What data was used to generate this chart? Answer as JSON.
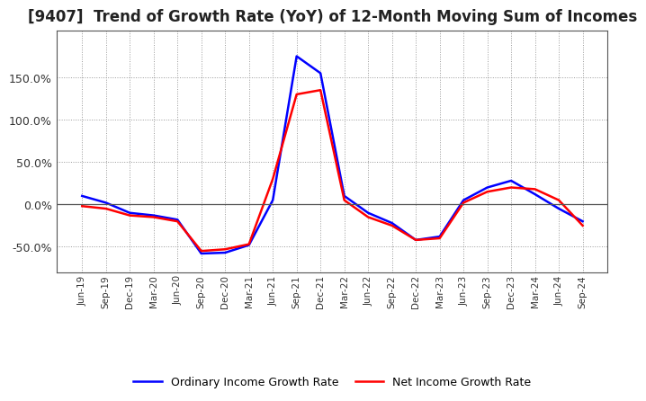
{
  "title": "[9407]  Trend of Growth Rate (YoY) of 12-Month Moving Sum of Incomes",
  "title_fontsize": 12,
  "background_color": "#ffffff",
  "plot_bg_color": "#ffffff",
  "grid_color": "#999999",
  "legend_labels": [
    "Ordinary Income Growth Rate",
    "Net Income Growth Rate"
  ],
  "legend_colors": [
    "blue",
    "red"
  ],
  "x_labels": [
    "Jun-19",
    "Sep-19",
    "Dec-19",
    "Mar-20",
    "Jun-20",
    "Sep-20",
    "Dec-20",
    "Mar-21",
    "Jun-21",
    "Sep-21",
    "Dec-21",
    "Mar-22",
    "Jun-22",
    "Sep-22",
    "Dec-22",
    "Mar-23",
    "Jun-23",
    "Sep-23",
    "Dec-23",
    "Mar-24",
    "Jun-24",
    "Sep-24"
  ],
  "ylim": [
    -80,
    205
  ],
  "yticks": [
    -50,
    0,
    50,
    100,
    150
  ],
  "ordinary_income": [
    10.0,
    2.0,
    -10.0,
    -13.0,
    -18.0,
    -58.0,
    -57.0,
    -48.0,
    5.0,
    175.0,
    155.0,
    10.0,
    -10.0,
    -22.0,
    -42.0,
    -38.0,
    5.0,
    20.0,
    28.0,
    12.0,
    -5.0,
    -20.0
  ],
  "net_income": [
    -2.0,
    -5.0,
    -13.0,
    -15.0,
    -20.0,
    -55.0,
    -53.0,
    -47.0,
    30.0,
    130.0,
    135.0,
    5.0,
    -15.0,
    -25.0,
    -42.0,
    -40.0,
    2.0,
    15.0,
    20.0,
    18.0,
    5.0,
    -25.0
  ]
}
